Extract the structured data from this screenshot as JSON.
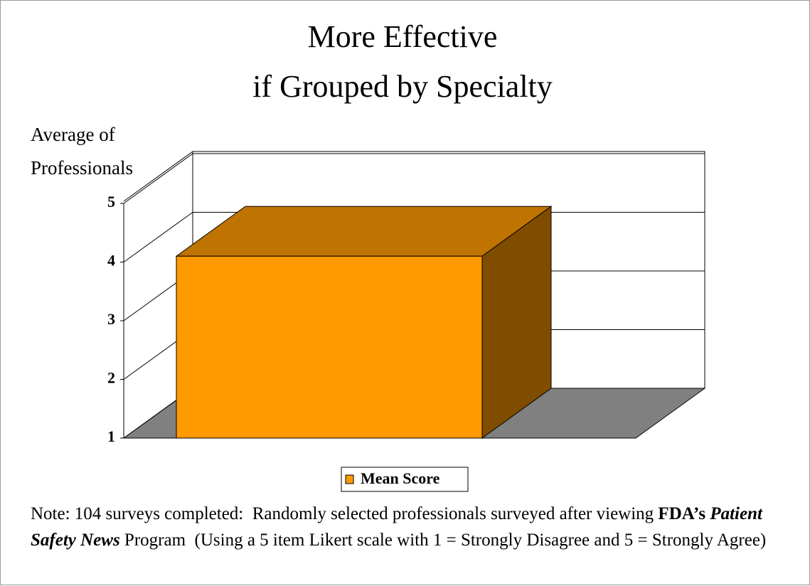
{
  "chart_data": {
    "type": "bar3d",
    "title": [
      "More Effective",
      "if Grouped by Specialty"
    ],
    "y_label": [
      "Average of",
      "Professionals"
    ],
    "series": [
      {
        "name": "Mean Score",
        "color": "#ff9900",
        "values": [
          4.1
        ]
      }
    ],
    "ylim": [
      1,
      5
    ],
    "yticks": [
      1,
      2,
      3,
      4,
      5
    ],
    "grid": true,
    "legend": "bottom",
    "note": [
      "Note: 104 surveys completed:  Randomly selected professionals surveyed after viewing ",
      "FDA’s ",
      "Patient Safety News",
      " Program  (Using a 5 item Likert scale with 1 = Strongly Disagree and 5 = Strongly Agree)"
    ]
  }
}
